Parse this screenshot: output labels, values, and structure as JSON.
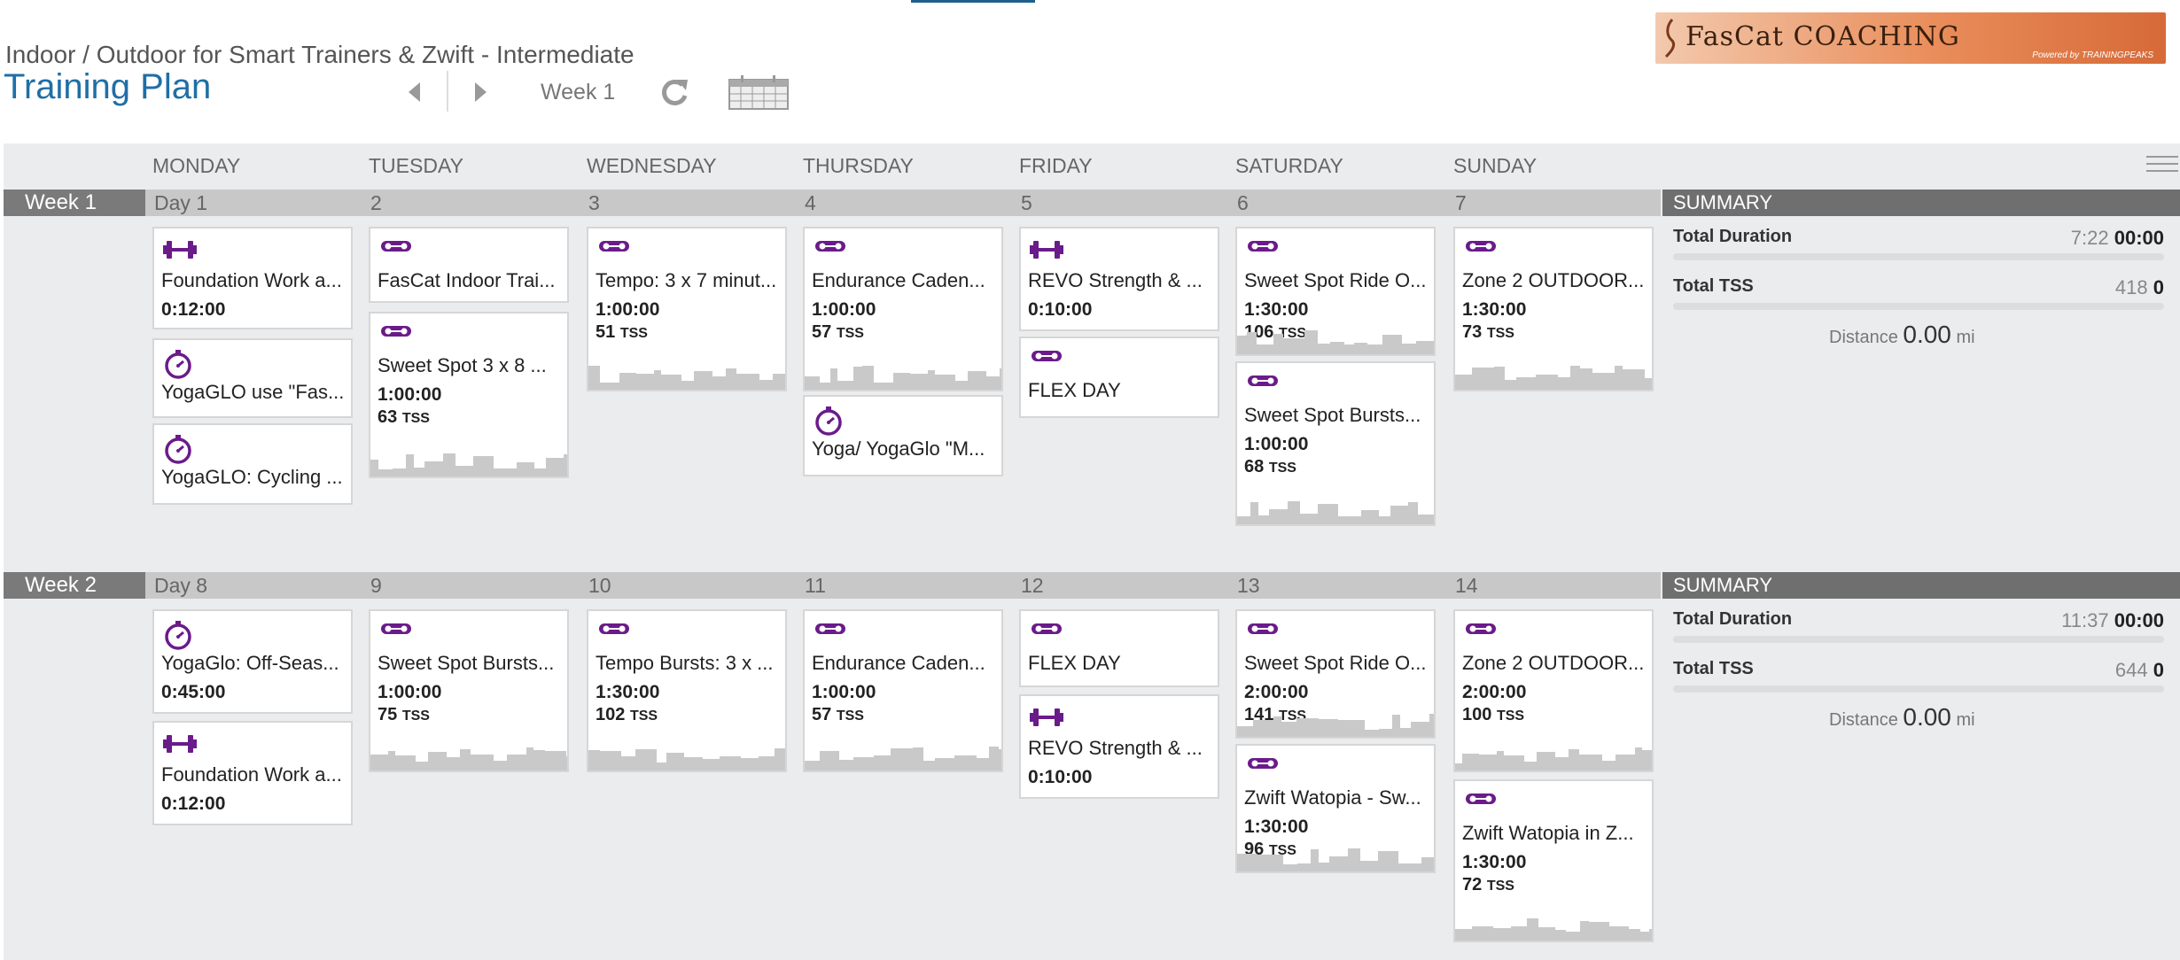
{
  "header": {
    "plan_subtitle": "Indoor / Outdoor for Smart Trainers & Zwift - Intermediate",
    "plan_title": "Training Plan",
    "week_label": "Week 1"
  },
  "logo": {
    "brand": "FasCat COACHING",
    "powered": "Powered by TRAININGPEAKS"
  },
  "days": [
    "MONDAY",
    "TUESDAY",
    "WEDNESDAY",
    "THURSDAY",
    "FRIDAY",
    "SATURDAY",
    "SUNDAY"
  ],
  "colors": {
    "accent": "#6a1b8a",
    "title_blue": "#1f6fa6"
  },
  "weeks": [
    {
      "label": "Week 1",
      "day_numbers": [
        "Day 1",
        "2",
        "3",
        "4",
        "5",
        "6",
        "7"
      ],
      "summary": {
        "heading": "SUMMARY",
        "duration_label": "Total Duration",
        "duration_light": "7:22",
        "duration_bold": "00:00",
        "tss_label": "Total TSS",
        "tss_light": "418",
        "tss_bold": "0",
        "distance_label": "Distance",
        "distance_value": "0.00",
        "distance_unit": "mi"
      },
      "cards": [
        {
          "icon": "strength-icon",
          "title": "Foundation Work a...",
          "duration": "0:12:00",
          "tss": "",
          "tss_unit": ""
        },
        {
          "icon": "stopwatch-icon",
          "title": "YogaGLO use \"Fas...",
          "duration": "",
          "tss": "",
          "tss_unit": ""
        },
        {
          "icon": "stopwatch-icon",
          "title": "YogaGLO: Cycling ...",
          "duration": "",
          "tss": "",
          "tss_unit": ""
        },
        {
          "icon": "bike-icon",
          "title": "FasCat Indoor Trai...",
          "duration": "",
          "tss": "",
          "tss_unit": ""
        },
        {
          "icon": "bike-icon",
          "title": "Sweet Spot 3 x 8 ...",
          "duration": "1:00:00",
          "tss": "63",
          "tss_unit": "TSS"
        },
        {
          "icon": "bike-icon",
          "title": "Tempo: 3 x 7 minut...",
          "duration": "1:00:00",
          "tss": "51",
          "tss_unit": "TSS"
        },
        {
          "icon": "bike-icon",
          "title": "Endurance Caden...",
          "duration": "1:00:00",
          "tss": "57",
          "tss_unit": "TSS"
        },
        {
          "icon": "stopwatch-icon",
          "title": "Yoga/ YogaGlo \"M...",
          "duration": "",
          "tss": "",
          "tss_unit": ""
        },
        {
          "icon": "strength-icon",
          "title": "REVO Strength & ...",
          "duration": "0:10:00",
          "tss": "",
          "tss_unit": ""
        },
        {
          "icon": "bike-icon",
          "title": "FLEX DAY",
          "duration": "",
          "tss": "",
          "tss_unit": ""
        },
        {
          "icon": "bike-icon",
          "title": "Sweet Spot Ride O...",
          "duration": "1:30:00",
          "tss": "106",
          "tss_unit": "TSS"
        },
        {
          "icon": "bike-icon",
          "title": "Sweet Spot Bursts...",
          "duration": "1:00:00",
          "tss": "68",
          "tss_unit": "TSS"
        },
        {
          "icon": "bike-icon",
          "title": "Zone 2 OUTDOOR...",
          "duration": "1:30:00",
          "tss": "73",
          "tss_unit": "TSS"
        }
      ]
    },
    {
      "label": "Week 2",
      "day_numbers": [
        "Day 8",
        "9",
        "10",
        "11",
        "12",
        "13",
        "14"
      ],
      "summary": {
        "heading": "SUMMARY",
        "duration_label": "Total Duration",
        "duration_light": "11:37",
        "duration_bold": "00:00",
        "tss_label": "Total TSS",
        "tss_light": "644",
        "tss_bold": "0",
        "distance_label": "Distance",
        "distance_value": "0.00",
        "distance_unit": "mi"
      },
      "cards": [
        {
          "icon": "stopwatch-icon",
          "title": "YogaGlo: Off-Seas...",
          "duration": "0:45:00",
          "tss": "",
          "tss_unit": ""
        },
        {
          "icon": "strength-icon",
          "title": "Foundation Work a...",
          "duration": "0:12:00",
          "tss": "",
          "tss_unit": ""
        },
        {
          "icon": "bike-icon",
          "title": "Sweet Spot Bursts...",
          "duration": "1:00:00",
          "tss": "75",
          "tss_unit": "TSS"
        },
        {
          "icon": "bike-icon",
          "title": "Tempo Bursts: 3 x ...",
          "duration": "1:30:00",
          "tss": "102",
          "tss_unit": "TSS"
        },
        {
          "icon": "bike-icon",
          "title": "Endurance Caden...",
          "duration": "1:00:00",
          "tss": "57",
          "tss_unit": "TSS"
        },
        {
          "icon": "bike-icon",
          "title": "FLEX DAY",
          "duration": "",
          "tss": "",
          "tss_unit": ""
        },
        {
          "icon": "strength-icon",
          "title": "REVO Strength & ...",
          "duration": "0:10:00",
          "tss": "",
          "tss_unit": ""
        },
        {
          "icon": "bike-icon",
          "title": "Sweet Spot Ride O...",
          "duration": "2:00:00",
          "tss": "141",
          "tss_unit": "TSS"
        },
        {
          "icon": "bike-icon",
          "title": "Zwift Watopia - Sw...",
          "duration": "1:30:00",
          "tss": "96",
          "tss_unit": "TSS"
        },
        {
          "icon": "bike-icon",
          "title": "Zone 2 OUTDOOR...",
          "duration": "2:00:00",
          "tss": "100",
          "tss_unit": "TSS"
        },
        {
          "icon": "bike-icon",
          "title": "Zwift Watopia in Z...",
          "duration": "1:30:00",
          "tss": "72",
          "tss_unit": "TSS"
        }
      ]
    }
  ]
}
